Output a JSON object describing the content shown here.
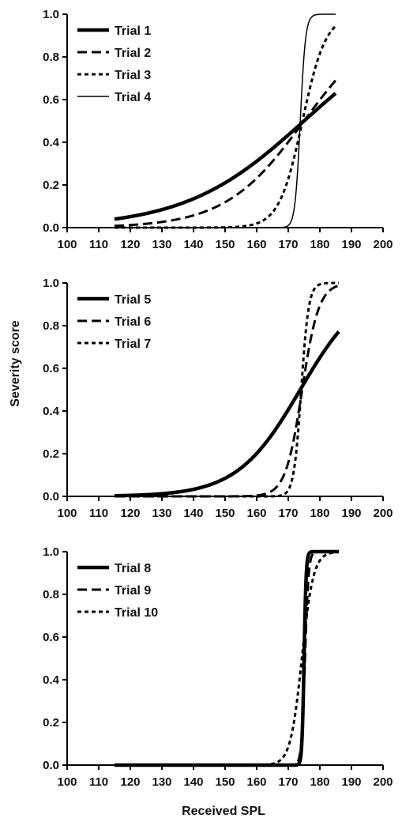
{
  "figure": {
    "ylabel": "Severity score",
    "xlabel": "Received SPL"
  },
  "chart_data": [
    {
      "type": "line",
      "xlim": [
        100,
        200
      ],
      "ylim": [
        0,
        1
      ],
      "xticks": [
        100,
        110,
        120,
        130,
        140,
        150,
        160,
        170,
        180,
        190,
        200
      ],
      "yticks": [
        "0.0",
        "0.2",
        "0.4",
        "0.6",
        "0.8",
        "1.0"
      ],
      "grid": false,
      "legend_position": "top-left",
      "series": [
        {
          "name": "Trial 1",
          "style": "thick-solid",
          "x_range": [
            115,
            185
          ],
          "x50": 175,
          "k": 0.053
        },
        {
          "name": "Trial 2",
          "style": "dashed",
          "x_range": [
            115,
            185
          ],
          "x50": 175,
          "k": 0.08
        },
        {
          "name": "Trial 3",
          "style": "dotted",
          "x_range": [
            115,
            185
          ],
          "x50": 174.5,
          "k": 0.27
        },
        {
          "name": "Trial 4",
          "style": "thin-solid",
          "x_range": [
            115,
            185
          ],
          "x50": 173.8,
          "k": 1.2
        }
      ]
    },
    {
      "type": "line",
      "xlim": [
        100,
        200
      ],
      "ylim": [
        0,
        1
      ],
      "xticks": [
        100,
        110,
        120,
        130,
        140,
        150,
        160,
        170,
        180,
        190,
        200
      ],
      "yticks": [
        "0.0",
        "0.2",
        "0.4",
        "0.6",
        "0.8",
        "1.0"
      ],
      "grid": false,
      "legend_position": "top-left",
      "series": [
        {
          "name": "Trial 5",
          "style": "thick-solid",
          "x_range": [
            115,
            186
          ],
          "x50": 173.8,
          "k": 0.1
        },
        {
          "name": "Trial 6",
          "style": "dashed",
          "x_range": [
            115,
            186
          ],
          "x50": 174.4,
          "k": 0.38
        },
        {
          "name": "Trial 7",
          "style": "dotted",
          "x_range": [
            115,
            186
          ],
          "x50": 174.1,
          "k": 0.85
        }
      ]
    },
    {
      "type": "line",
      "xlim": [
        100,
        200
      ],
      "ylim": [
        0,
        1
      ],
      "xticks": [
        100,
        110,
        120,
        130,
        140,
        150,
        160,
        170,
        180,
        190,
        200
      ],
      "yticks": [
        "0.0",
        "0.2",
        "0.4",
        "0.6",
        "0.8",
        "1.0"
      ],
      "grid": false,
      "legend_position": "top-left",
      "series": [
        {
          "name": "Trial 8",
          "style": "thick-solid",
          "x_range": [
            115,
            186
          ],
          "x50": 175,
          "k": 3.0
        },
        {
          "name": "Trial 9",
          "style": "dashed",
          "x_range": [
            115,
            186
          ],
          "x50": 175.3,
          "k": 1.8
        },
        {
          "name": "Trial 10",
          "style": "dotted",
          "x_range": [
            115,
            186
          ],
          "x50": 174.3,
          "k": 0.55
        }
      ]
    }
  ]
}
